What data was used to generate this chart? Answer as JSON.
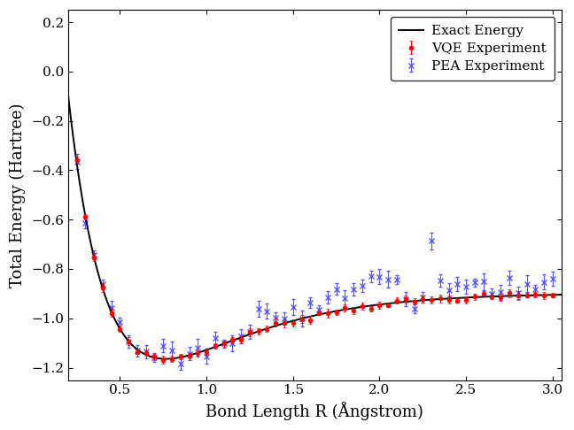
{
  "xlabel": "Bond Length R (Ångstrom)",
  "ylabel": "Total Energy (Hartree)",
  "xlim": [
    0.2,
    3.05
  ],
  "ylim": [
    -1.25,
    0.25
  ],
  "xticks": [
    0.5,
    1.0,
    1.5,
    2.0,
    2.5,
    3.0
  ],
  "yticks": [
    -1.2,
    -1.0,
    -0.8,
    -0.6,
    -0.4,
    -0.2,
    0.0,
    0.2
  ],
  "exact_color": "#000000",
  "vqe_color": "#ff0000",
  "pea_color": "#5555ff",
  "legend_loc": "upper right",
  "figsize": [
    6.48,
    4.86
  ],
  "dpi": 100
}
